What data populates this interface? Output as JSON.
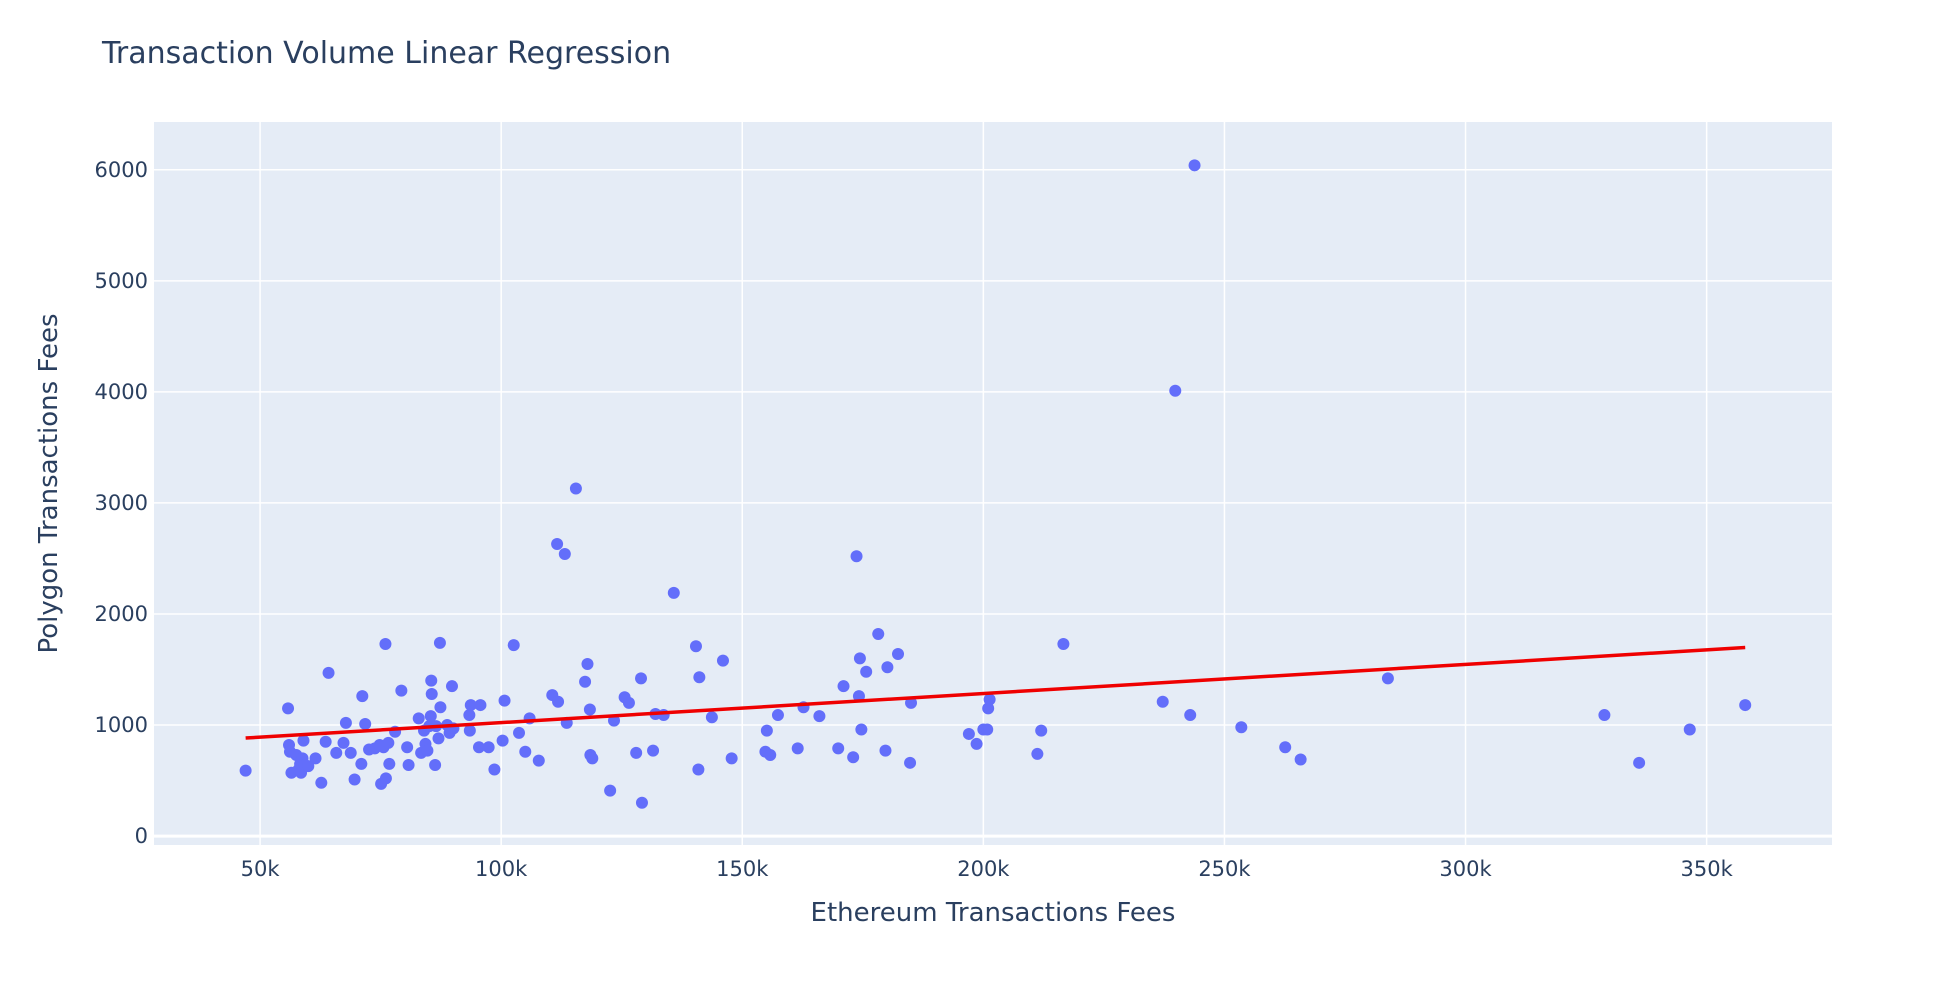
{
  "chart_data": {
    "type": "scatter",
    "title": "Transaction Volume Linear Regression",
    "xlabel": "Ethereum Transactions Fees",
    "ylabel": "Polygon Transactions Fees",
    "xlim": [
      28000,
      376000
    ],
    "ylim": [
      -80,
      6430
    ],
    "x_ticks": [
      50000,
      100000,
      150000,
      200000,
      250000,
      300000,
      350000
    ],
    "x_tick_labels": [
      "50k",
      "100k",
      "150k",
      "200k",
      "250k",
      "300k",
      "350k"
    ],
    "y_ticks": [
      0,
      1000,
      2000,
      3000,
      4000,
      5000,
      6000
    ],
    "y_tick_labels": [
      "0",
      "1000",
      "2000",
      "3000",
      "4000",
      "5000",
      "6000"
    ],
    "grid": true,
    "colors": {
      "plot_bg": "#E5ECF6",
      "grid": "#ffffff",
      "points": "#636EFA",
      "line": "#EF0000",
      "text": "#2a3f5f"
    },
    "series": [
      {
        "type": "scatter",
        "points": [
          [
            47000,
            590
          ],
          [
            55800,
            1150
          ],
          [
            56000,
            820
          ],
          [
            56200,
            760
          ],
          [
            56500,
            570
          ],
          [
            57500,
            730
          ],
          [
            58000,
            600
          ],
          [
            58300,
            650
          ],
          [
            58500,
            570
          ],
          [
            58800,
            700
          ],
          [
            59000,
            860
          ],
          [
            59300,
            640
          ],
          [
            60000,
            630
          ],
          [
            61500,
            700
          ],
          [
            62700,
            480
          ],
          [
            63600,
            850
          ],
          [
            64200,
            1470
          ],
          [
            65800,
            750
          ],
          [
            67300,
            840
          ],
          [
            67800,
            1020
          ],
          [
            68800,
            750
          ],
          [
            69600,
            510
          ],
          [
            71000,
            650
          ],
          [
            71200,
            1260
          ],
          [
            71800,
            1010
          ],
          [
            72600,
            780
          ],
          [
            73800,
            790
          ],
          [
            74800,
            820
          ],
          [
            75100,
            470
          ],
          [
            75600,
            800
          ],
          [
            76000,
            1730
          ],
          [
            76100,
            520
          ],
          [
            76600,
            840
          ],
          [
            76800,
            650
          ],
          [
            78000,
            940
          ],
          [
            79300,
            1310
          ],
          [
            80500,
            800
          ],
          [
            80800,
            640
          ],
          [
            82900,
            1060
          ],
          [
            83400,
            750
          ],
          [
            84000,
            950
          ],
          [
            84300,
            830
          ],
          [
            84700,
            770
          ],
          [
            85100,
            990
          ],
          [
            85400,
            1080
          ],
          [
            85500,
            1400
          ],
          [
            85600,
            1280
          ],
          [
            86300,
            640
          ],
          [
            86500,
            990
          ],
          [
            87000,
            880
          ],
          [
            87300,
            1740
          ],
          [
            87400,
            1160
          ],
          [
            88800,
            1000
          ],
          [
            89300,
            930
          ],
          [
            89800,
            1350
          ],
          [
            90100,
            970
          ],
          [
            93400,
            1090
          ],
          [
            93500,
            950
          ],
          [
            93700,
            1180
          ],
          [
            95400,
            800
          ],
          [
            95700,
            1180
          ],
          [
            97400,
            800
          ],
          [
            98600,
            600
          ],
          [
            100300,
            860
          ],
          [
            100700,
            1220
          ],
          [
            102600,
            1720
          ],
          [
            103700,
            930
          ],
          [
            105000,
            760
          ],
          [
            105900,
            1060
          ],
          [
            107800,
            680
          ],
          [
            110600,
            1270
          ],
          [
            111600,
            2630
          ],
          [
            111800,
            1210
          ],
          [
            113200,
            2540
          ],
          [
            113600,
            1020
          ],
          [
            115500,
            3130
          ],
          [
            117400,
            1390
          ],
          [
            117900,
            1550
          ],
          [
            118400,
            1140
          ],
          [
            118500,
            730
          ],
          [
            118900,
            700
          ],
          [
            122600,
            410
          ],
          [
            123400,
            1040
          ],
          [
            125600,
            1250
          ],
          [
            126500,
            1200
          ],
          [
            128000,
            750
          ],
          [
            129000,
            1420
          ],
          [
            129200,
            300
          ],
          [
            131500,
            770
          ],
          [
            132000,
            1100
          ],
          [
            133700,
            1090
          ],
          [
            135800,
            2190
          ],
          [
            140400,
            1710
          ],
          [
            140900,
            600
          ],
          [
            141100,
            1430
          ],
          [
            143700,
            1070
          ],
          [
            146000,
            1580
          ],
          [
            147800,
            700
          ],
          [
            154800,
            760
          ],
          [
            155100,
            950
          ],
          [
            155800,
            730
          ],
          [
            157400,
            1090
          ],
          [
            161500,
            790
          ],
          [
            162700,
            1160
          ],
          [
            166000,
            1080
          ],
          [
            169900,
            790
          ],
          [
            171000,
            1350
          ],
          [
            173000,
            710
          ],
          [
            173700,
            2520
          ],
          [
            174200,
            1260
          ],
          [
            174400,
            1600
          ],
          [
            174700,
            960
          ],
          [
            175700,
            1480
          ],
          [
            178200,
            1820
          ],
          [
            179700,
            770
          ],
          [
            180100,
            1520
          ],
          [
            182300,
            1640
          ],
          [
            184800,
            660
          ],
          [
            185000,
            1200
          ],
          [
            197000,
            920
          ],
          [
            198600,
            830
          ],
          [
            200000,
            960
          ],
          [
            200800,
            960
          ],
          [
            201000,
            1150
          ],
          [
            201300,
            1230
          ],
          [
            211200,
            740
          ],
          [
            212000,
            950
          ],
          [
            216600,
            1730
          ],
          [
            237200,
            1210
          ],
          [
            239800,
            4010
          ],
          [
            242900,
            1090
          ],
          [
            243800,
            6040
          ],
          [
            253500,
            980
          ],
          [
            262600,
            800
          ],
          [
            265800,
            690
          ],
          [
            283900,
            1420
          ],
          [
            328800,
            1090
          ],
          [
            336000,
            660
          ],
          [
            346500,
            960
          ],
          [
            358000,
            1180
          ]
        ]
      },
      {
        "type": "line",
        "points": [
          [
            47000,
            883
          ],
          [
            358000,
            1698
          ]
        ]
      }
    ]
  }
}
